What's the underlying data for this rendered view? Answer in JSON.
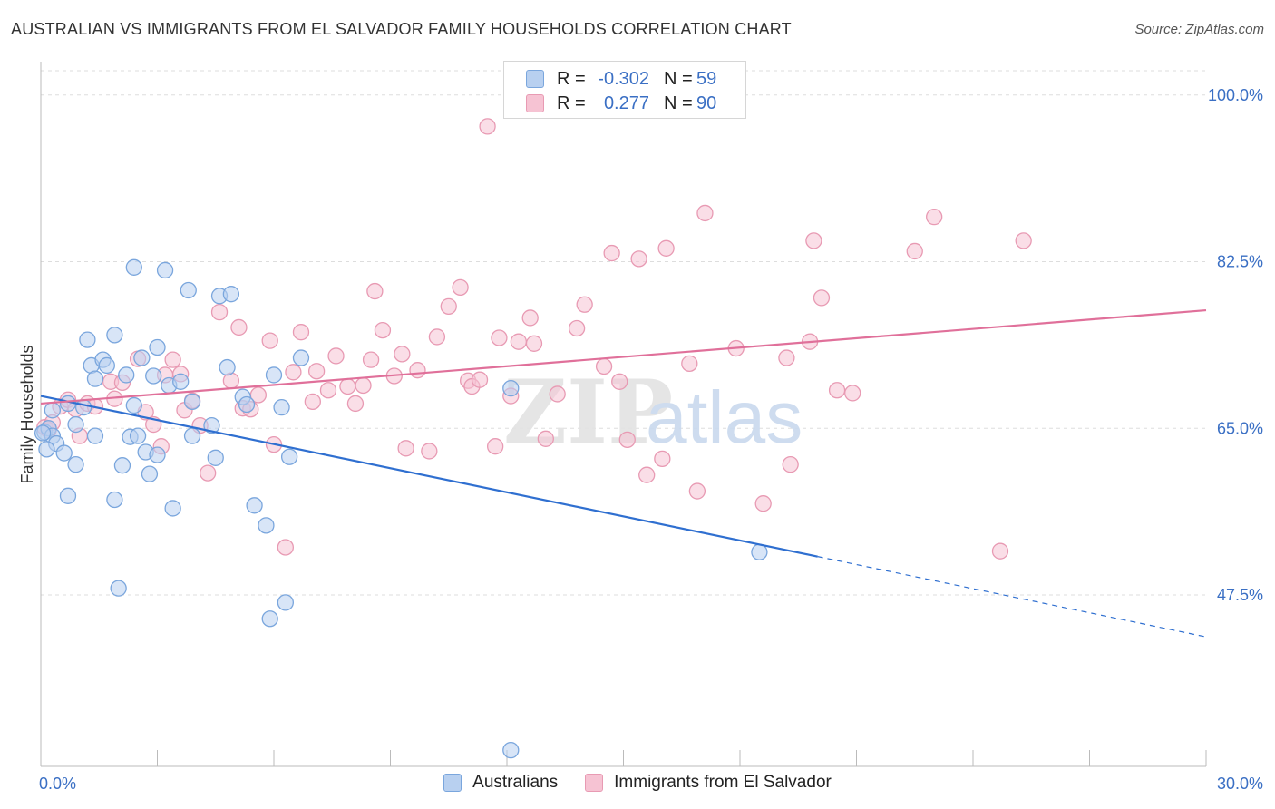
{
  "header": {
    "title": "AUSTRALIAN VS IMMIGRANTS FROM EL SALVADOR FAMILY HOUSEHOLDS CORRELATION CHART",
    "source": "Source: ZipAtlas.com"
  },
  "legend": {
    "rows": [
      {
        "r_label": "R =",
        "r_value": "-0.302",
        "n_label": "N =",
        "n_value": "59"
      },
      {
        "r_label": "R =",
        "r_value": "0.277",
        "n_label": "N =",
        "n_value": "90"
      }
    ]
  },
  "bottom_legend": {
    "australians": "Australians",
    "salvador": "Immigrants from El Salvador"
  },
  "watermark": {
    "zip": "ZIP",
    "atlas": "atlas"
  },
  "colors": {
    "blue_fill": "#b8d0f0",
    "blue_stroke": "#7aa6dd",
    "blue_line": "#2f6fd0",
    "pink_fill": "#f6c3d3",
    "pink_stroke": "#e89ab3",
    "pink_line": "#e0709a",
    "axis_label": "#3a6fc4",
    "grid": "#dddddd"
  },
  "chart_data": {
    "type": "scatter",
    "title": "AUSTRALIAN VS IMMIGRANTS FROM EL SALVADOR FAMILY HOUSEHOLDS CORRELATION CHART",
    "xlabel": "",
    "ylabel": "Family Households",
    "xlim": [
      0,
      30
    ],
    "ylim": [
      29.5,
      103.5
    ],
    "x_tick_labels": [
      "0.0%",
      "30.0%"
    ],
    "y_ticks": [
      47.5,
      65.0,
      82.5,
      100.0
    ],
    "y_tick_labels": [
      "47.5%",
      "65.0%",
      "82.5%",
      "100.0%"
    ],
    "grid": true,
    "legend_position": "top-center",
    "series": [
      {
        "name": "Australians",
        "trend": {
          "x0": 0.0,
          "y0": 68.4,
          "x1": 30.0,
          "y1": 43.1,
          "solid_until": 20.0
        },
        "points": [
          [
            0.1,
            64.6
          ],
          [
            0.2,
            65.0
          ],
          [
            0.3,
            64.2
          ],
          [
            0.3,
            66.9
          ],
          [
            0.4,
            63.4
          ],
          [
            0.6,
            62.4
          ],
          [
            0.7,
            57.9
          ],
          [
            0.7,
            67.6
          ],
          [
            0.9,
            65.4
          ],
          [
            0.9,
            61.2
          ],
          [
            1.1,
            67.2
          ],
          [
            1.2,
            74.3
          ],
          [
            1.3,
            71.6
          ],
          [
            1.4,
            70.2
          ],
          [
            1.4,
            64.2
          ],
          [
            1.6,
            72.2
          ],
          [
            1.7,
            71.6
          ],
          [
            1.9,
            57.5
          ],
          [
            1.9,
            74.8
          ],
          [
            2.0,
            48.2
          ],
          [
            2.1,
            61.1
          ],
          [
            2.2,
            70.6
          ],
          [
            2.3,
            64.1
          ],
          [
            2.4,
            67.4
          ],
          [
            2.4,
            81.9
          ],
          [
            2.5,
            64.2
          ],
          [
            2.6,
            72.4
          ],
          [
            2.7,
            62.5
          ],
          [
            2.8,
            60.2
          ],
          [
            2.9,
            70.5
          ],
          [
            3.0,
            62.2
          ],
          [
            3.0,
            73.5
          ],
          [
            3.2,
            81.6
          ],
          [
            3.3,
            69.5
          ],
          [
            3.4,
            56.6
          ],
          [
            3.6,
            69.9
          ],
          [
            3.8,
            79.5
          ],
          [
            3.9,
            67.8
          ],
          [
            3.9,
            64.2
          ],
          [
            4.4,
            65.3
          ],
          [
            4.5,
            61.9
          ],
          [
            4.6,
            78.9
          ],
          [
            4.8,
            71.4
          ],
          [
            4.9,
            79.1
          ],
          [
            5.2,
            68.3
          ],
          [
            5.3,
            67.5
          ],
          [
            5.5,
            56.9
          ],
          [
            5.8,
            54.8
          ],
          [
            5.9,
            45.0
          ],
          [
            6.0,
            70.6
          ],
          [
            6.2,
            67.2
          ],
          [
            6.3,
            46.7
          ],
          [
            6.4,
            62.0
          ],
          [
            6.7,
            72.4
          ],
          [
            12.1,
            69.2
          ],
          [
            12.1,
            31.2
          ],
          [
            18.5,
            52.0
          ],
          [
            0.05,
            64.5
          ],
          [
            0.15,
            62.8
          ]
        ]
      },
      {
        "name": "Immigrants from El Salvador",
        "trend": {
          "x0": 0.0,
          "y0": 67.6,
          "x1": 30.0,
          "y1": 77.4
        },
        "points": [
          [
            0.1,
            65.1
          ],
          [
            0.2,
            64.8
          ],
          [
            0.3,
            65.6
          ],
          [
            0.5,
            67.3
          ],
          [
            0.7,
            68.0
          ],
          [
            0.9,
            67.0
          ],
          [
            1.0,
            64.2
          ],
          [
            1.2,
            67.6
          ],
          [
            1.4,
            67.3
          ],
          [
            1.8,
            69.9
          ],
          [
            1.9,
            68.1
          ],
          [
            2.1,
            69.8
          ],
          [
            2.5,
            72.3
          ],
          [
            2.7,
            66.7
          ],
          [
            2.9,
            65.4
          ],
          [
            3.1,
            63.1
          ],
          [
            3.2,
            70.6
          ],
          [
            3.4,
            72.2
          ],
          [
            3.6,
            70.7
          ],
          [
            3.7,
            66.9
          ],
          [
            3.9,
            67.9
          ],
          [
            4.1,
            65.3
          ],
          [
            4.3,
            60.3
          ],
          [
            4.6,
            77.2
          ],
          [
            4.9,
            70.0
          ],
          [
            5.1,
            75.6
          ],
          [
            5.2,
            67.1
          ],
          [
            5.4,
            67.0
          ],
          [
            5.6,
            68.5
          ],
          [
            5.9,
            74.2
          ],
          [
            6.0,
            63.3
          ],
          [
            6.3,
            52.5
          ],
          [
            6.5,
            70.9
          ],
          [
            6.7,
            75.1
          ],
          [
            7.0,
            67.8
          ],
          [
            7.1,
            71.0
          ],
          [
            7.4,
            69.0
          ],
          [
            7.6,
            72.6
          ],
          [
            7.9,
            69.4
          ],
          [
            8.1,
            67.6
          ],
          [
            8.3,
            69.5
          ],
          [
            8.5,
            72.2
          ],
          [
            8.6,
            79.4
          ],
          [
            8.8,
            75.3
          ],
          [
            9.1,
            70.5
          ],
          [
            9.3,
            72.8
          ],
          [
            9.4,
            62.9
          ],
          [
            9.7,
            71.1
          ],
          [
            10.0,
            62.6
          ],
          [
            10.2,
            74.6
          ],
          [
            10.5,
            77.8
          ],
          [
            10.8,
            79.8
          ],
          [
            11.0,
            70.0
          ],
          [
            11.1,
            69.4
          ],
          [
            11.3,
            70.1
          ],
          [
            11.5,
            96.7
          ],
          [
            11.7,
            63.1
          ],
          [
            11.8,
            74.5
          ],
          [
            12.1,
            68.4
          ],
          [
            12.3,
            74.1
          ],
          [
            12.6,
            76.6
          ],
          [
            12.7,
            73.9
          ],
          [
            13.0,
            63.9
          ],
          [
            13.3,
            68.6
          ],
          [
            13.8,
            75.5
          ],
          [
            14.0,
            78.0
          ],
          [
            14.5,
            71.5
          ],
          [
            14.7,
            83.4
          ],
          [
            14.9,
            69.9
          ],
          [
            15.1,
            63.8
          ],
          [
            15.4,
            82.8
          ],
          [
            15.6,
            60.1
          ],
          [
            16.0,
            61.8
          ],
          [
            16.1,
            83.9
          ],
          [
            16.7,
            71.8
          ],
          [
            16.9,
            58.4
          ],
          [
            17.1,
            87.6
          ],
          [
            17.9,
            73.4
          ],
          [
            18.6,
            57.1
          ],
          [
            19.2,
            72.4
          ],
          [
            19.3,
            61.2
          ],
          [
            19.8,
            74.1
          ],
          [
            19.9,
            84.7
          ],
          [
            20.1,
            78.7
          ],
          [
            20.5,
            69.0
          ],
          [
            20.9,
            68.7
          ],
          [
            22.5,
            83.6
          ],
          [
            23.0,
            87.2
          ],
          [
            24.7,
            52.1
          ],
          [
            25.3,
            84.7
          ]
        ]
      }
    ]
  }
}
